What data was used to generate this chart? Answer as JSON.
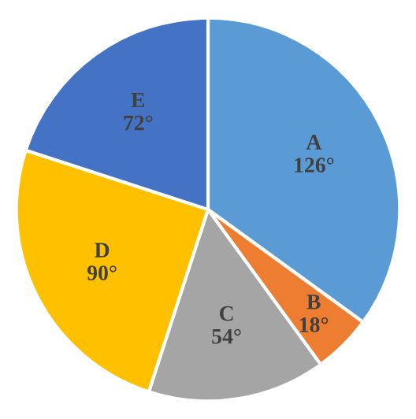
{
  "chart_data": {
    "type": "pie",
    "categories": [
      "A",
      "B",
      "C",
      "D",
      "E"
    ],
    "values": [
      126,
      18,
      54,
      90,
      72
    ],
    "value_labels": [
      "126°",
      "18°",
      "54°",
      "90°",
      "72°"
    ],
    "colors": [
      "#5b9bd5",
      "#ed7d31",
      "#a5a5a5",
      "#ffc000",
      "#4472c4"
    ]
  }
}
